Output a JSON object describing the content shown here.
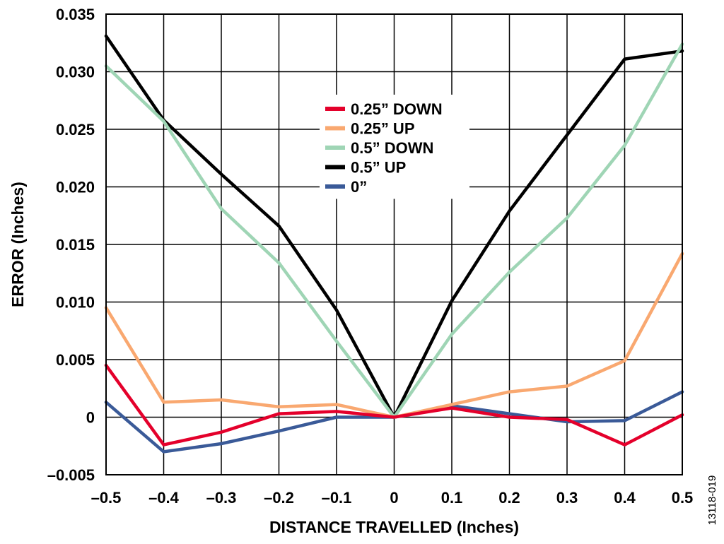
{
  "chart_data": {
    "type": "line",
    "xlabel": "DISTANCE TRAVELLED (Inches)",
    "ylabel": "ERROR (Inches)",
    "xlim": [
      -0.5,
      0.5
    ],
    "ylim": [
      -0.005,
      0.035
    ],
    "x_ticks": [
      "–0.5",
      "–0.4",
      "–0.3",
      "–0.2",
      "–0.1",
      "0",
      "0.1",
      "0.2",
      "0.3",
      "0.4",
      "0.5"
    ],
    "y_ticks": [
      "0.035",
      "0.030",
      "0.025",
      "0.020",
      "0.015",
      "0.010",
      "0.005",
      "0",
      "–0.005"
    ],
    "grid": true,
    "legend_position": "top-center",
    "x": [
      -0.5,
      -0.4,
      -0.3,
      -0.2,
      -0.1,
      0,
      0.1,
      0.2,
      0.3,
      0.4,
      0.5
    ],
    "series": [
      {
        "name": "0.25” DOWN",
        "color": "#e4002b",
        "values": [
          0.0045,
          -0.0024,
          -0.0013,
          0.0003,
          0.0005,
          0.0,
          0.0008,
          0.0,
          -0.0002,
          -0.0024,
          0.0002
        ]
      },
      {
        "name": "0.25” UP",
        "color": "#f9a870",
        "values": [
          0.0095,
          0.0013,
          0.0015,
          0.0009,
          0.0011,
          0.0,
          0.0011,
          0.0022,
          0.0027,
          0.0049,
          0.0142
        ]
      },
      {
        "name": "0.5” DOWN",
        "color": "#9fd5b5",
        "values": [
          0.0305,
          0.0257,
          0.0181,
          0.0134,
          0.0066,
          0.0,
          0.0072,
          0.0126,
          0.0173,
          0.0236,
          0.0324
        ]
      },
      {
        "name": "0.5” UP",
        "color": "#000000",
        "values": [
          0.0331,
          0.0258,
          0.0211,
          0.0166,
          0.0093,
          0.0,
          0.0101,
          0.0179,
          0.0245,
          0.0311,
          0.0318
        ]
      },
      {
        "name": "0”",
        "color": "#3a5a98",
        "values": [
          0.0013,
          -0.003,
          -0.0023,
          -0.0012,
          0.0,
          0.0,
          0.001,
          0.0003,
          -0.0004,
          -0.0003,
          0.0022
        ]
      }
    ]
  },
  "figure_id": "13118-019"
}
